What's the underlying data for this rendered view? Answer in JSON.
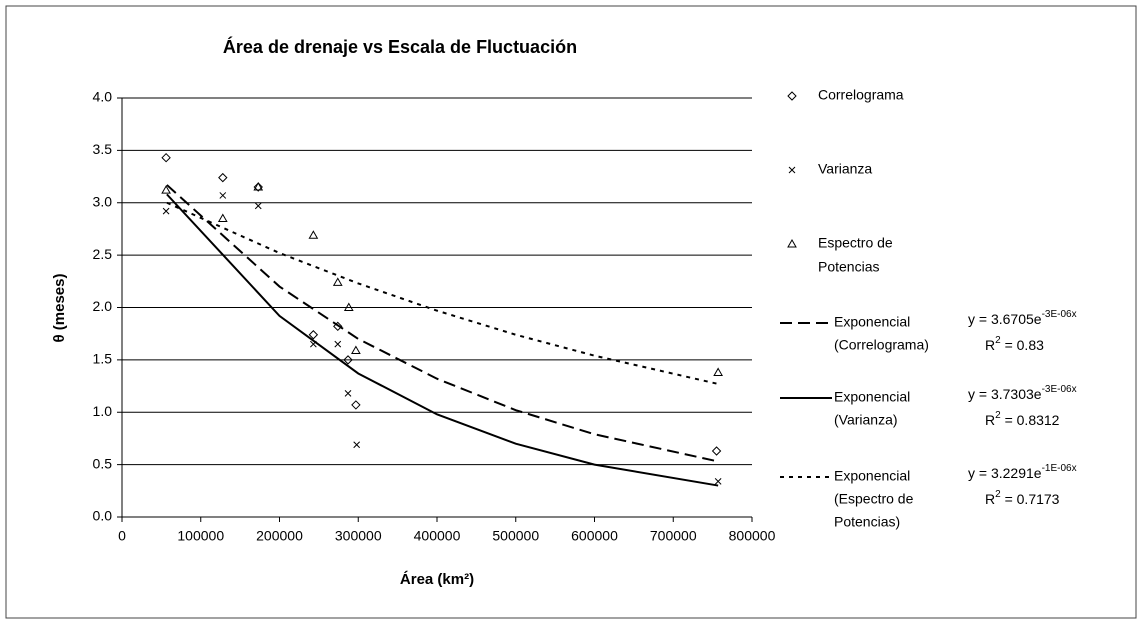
{
  "chart_data": {
    "type": "scatter",
    "title": "Área de drenaje vs Escala de Fluctuación",
    "x_label": "Área (km²)",
    "y_label": "θ (meses)",
    "xlim": [
      0,
      800000
    ],
    "xticks": [
      0,
      100000,
      200000,
      300000,
      400000,
      500000,
      600000,
      700000,
      800000
    ],
    "ylim": [
      0,
      4
    ],
    "yticks": [
      {
        "value": 0,
        "label": "0.0"
      },
      {
        "value": 0.5,
        "label": "0.5"
      },
      {
        "value": 1,
        "label": "1.0"
      },
      {
        "value": 1.5,
        "label": "1.5"
      },
      {
        "value": 2,
        "label": "2.0"
      },
      {
        "value": 2.5,
        "label": "2.5"
      },
      {
        "value": 3,
        "label": "3.0"
      },
      {
        "value": 3.5,
        "label": "3.5"
      },
      {
        "value": 4,
        "label": "4.0"
      }
    ],
    "grid": true,
    "series": [
      {
        "name": "Correlograma",
        "marker": "diamond",
        "color": "#000000",
        "x": [
          56000,
          128000,
          173000,
          243000,
          274000,
          287000,
          297000,
          755000
        ],
        "values": [
          3.43,
          3.24,
          3.15,
          1.74,
          1.82,
          1.5,
          1.07,
          0.63
        ]
      },
      {
        "name": "Varianza",
        "marker": "cross",
        "color": "#000000",
        "x": [
          56000,
          128000,
          173000,
          243000,
          274000,
          287000,
          298000,
          757000
        ],
        "values": [
          2.92,
          3.07,
          2.97,
          1.65,
          1.65,
          1.18,
          0.69,
          0.34
        ]
      },
      {
        "name": "Espectro de Potencias",
        "label_lines": [
          "Espectro de",
          "Potencias"
        ],
        "marker": "triangle",
        "color": "#000000",
        "x": [
          56000,
          128000,
          173000,
          243000,
          274000,
          288000,
          297000,
          757000
        ],
        "values": [
          3.12,
          2.85,
          3.15,
          2.69,
          2.24,
          2.0,
          1.59,
          1.38
        ]
      }
    ],
    "trendlines": [
      {
        "label_lines": [
          "Exponencial",
          "(Correlograma)"
        ],
        "dash": "12,6",
        "color": "#000000",
        "equation": {
          "base": "y = 3.6705e",
          "exp": "-3E-06x"
        },
        "r2": {
          "base": "R",
          "exp": "2",
          "rest": " = 0.83"
        },
        "x": [
          57000,
          200000,
          300000,
          400000,
          500000,
          600000,
          757000
        ],
        "values": [
          3.17,
          2.2,
          1.7,
          1.32,
          1.02,
          0.79,
          0.53
        ]
      },
      {
        "label_lines": [
          "Exponencial",
          "(Varianza)"
        ],
        "dash": "none",
        "color": "#000000",
        "equation": {
          "base": "y = 3.7303e",
          "exp": "-3E-06x"
        },
        "r2": {
          "base": "R",
          "exp": "2",
          "rest": " = 0.8312"
        },
        "x": [
          57000,
          200000,
          300000,
          400000,
          500000,
          600000,
          757000
        ],
        "values": [
          3.08,
          1.92,
          1.37,
          0.98,
          0.7,
          0.5,
          0.3
        ]
      },
      {
        "label_lines": [
          "Exponencial",
          "(Espectro de",
          "Potencias)"
        ],
        "dash": "4,5",
        "color": "#000000",
        "equation": {
          "base": "y = 3.2291e",
          "exp": "-1E-06x"
        },
        "r2": {
          "base": "R",
          "exp": "2",
          "rest": " = 0.7173"
        },
        "x": [
          57000,
          200000,
          300000,
          400000,
          500000,
          600000,
          757000
        ],
        "values": [
          3.0,
          2.52,
          2.23,
          1.97,
          1.74,
          1.54,
          1.27
        ]
      }
    ]
  }
}
